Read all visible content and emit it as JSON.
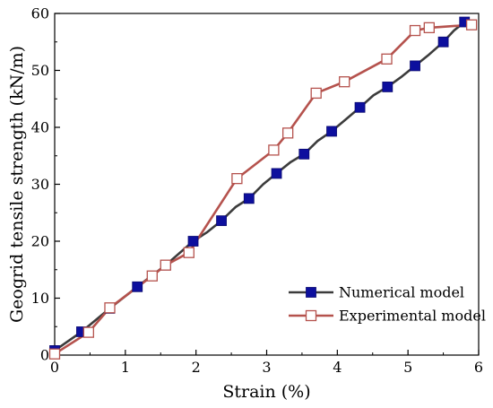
{
  "chart_data": {
    "type": "line",
    "title": "",
    "xlabel": "Strain (%)",
    "ylabel": "Geogrid tensile strength (kN/m)",
    "xlim": [
      0,
      6
    ],
    "ylim": [
      0,
      60
    ],
    "xticks": [
      0,
      1,
      2,
      3,
      4,
      5,
      6
    ],
    "yticks": [
      0,
      10,
      20,
      30,
      40,
      50,
      60
    ],
    "grid": false,
    "legend_position": "bottom-right",
    "series": [
      {
        "name": "Numerical model",
        "line_color": "#3c3c3c",
        "marker": "filled-square",
        "marker_color": "#0d0f9e",
        "x": [
          0.0,
          0.38,
          0.78,
          1.17,
          1.57,
          1.96,
          2.36,
          2.75,
          3.14,
          3.53,
          3.92,
          4.32,
          4.71,
          5.1,
          5.5,
          5.8
        ],
        "y": [
          0.8,
          4.1,
          8.2,
          12.0,
          15.8,
          20.0,
          23.6,
          27.5,
          31.9,
          35.3,
          39.3,
          43.5,
          47.1,
          50.8,
          55.0,
          58.5
        ],
        "curve_x": [
          0.0,
          0.38,
          0.78,
          1.17,
          1.57,
          1.96,
          2.16,
          2.36,
          2.56,
          2.75,
          2.95,
          3.14,
          3.34,
          3.53,
          3.72,
          3.92,
          4.12,
          4.32,
          4.51,
          4.71,
          4.9,
          5.1,
          5.3,
          5.5,
          5.65,
          5.8
        ],
        "curve_y": [
          0.8,
          4.1,
          8.2,
          12.0,
          15.8,
          20.0,
          21.6,
          23.6,
          26.0,
          27.5,
          30.0,
          31.9,
          33.9,
          35.3,
          37.6,
          39.3,
          41.4,
          43.5,
          45.6,
          47.1,
          48.8,
          50.8,
          52.8,
          55.0,
          57.0,
          58.5
        ]
      },
      {
        "name": "Experimental model",
        "line_color": "#b5524d",
        "marker": "open-square",
        "marker_color": "#b5524d",
        "x": [
          0.0,
          0.48,
          0.78,
          1.38,
          1.57,
          1.9,
          2.58,
          3.1,
          3.3,
          3.7,
          4.1,
          4.7,
          5.1,
          5.3,
          5.9
        ],
        "y": [
          0.2,
          4.0,
          8.3,
          13.9,
          15.8,
          18.0,
          31.0,
          36.0,
          39.0,
          46.0,
          48.0,
          52.0,
          57.0,
          57.5,
          58.0
        ]
      }
    ]
  }
}
